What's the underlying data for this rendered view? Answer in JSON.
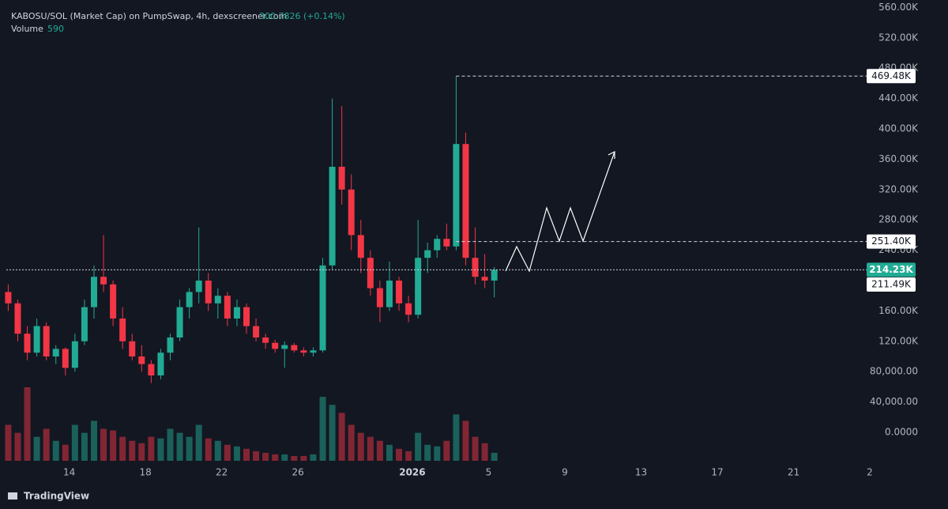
{
  "chart_data": {
    "type": "candlestick",
    "title": "KABOSU/SOL (Market Cap) on PumpSwap, 4h, dexscreener.com",
    "last_price": "300.7826 (+0.14%)",
    "volume_label": "Volume",
    "volume_value": 590,
    "brand": "TradingView",
    "up_color": "#22ab94",
    "down_color": "#f23645",
    "x": [
      10.8,
      11.3,
      11.8,
      12.3,
      12.8,
      13.3,
      13.8,
      14.3,
      14.8,
      15.3,
      15.8,
      16.3,
      16.8,
      17.3,
      17.8,
      18.3,
      18.8,
      19.3,
      19.8,
      20.3,
      20.8,
      21.3,
      21.8,
      22.3,
      22.8,
      23.3,
      23.8,
      24.3,
      24.8,
      25.3,
      25.8,
      26.3,
      26.8,
      27.3,
      27.8,
      28.3,
      28.8,
      29.3,
      29.8,
      30.3,
      30.8,
      31.3,
      31.8,
      32.3,
      32.8,
      33.3,
      33.8,
      34.3,
      34.8,
      35.3,
      35.8,
      36.3
    ],
    "open": [
      185000,
      170000,
      130000,
      105000,
      140000,
      100000,
      110000,
      85000,
      120000,
      165000,
      205000,
      195000,
      150000,
      120000,
      100000,
      90000,
      75000,
      105000,
      125000,
      165000,
      185000,
      200000,
      170000,
      180000,
      150000,
      165000,
      140000,
      125000,
      118000,
      110000,
      115000,
      108000,
      105000,
      108000,
      220000,
      350000,
      320000,
      260000,
      230000,
      190000,
      165000,
      200000,
      170000,
      155000,
      230000,
      240000,
      255000,
      245000,
      380000,
      230000,
      205000,
      200000
    ],
    "high": [
      195000,
      175000,
      140000,
      150000,
      145000,
      115000,
      112000,
      130000,
      175000,
      220000,
      260000,
      200000,
      165000,
      130000,
      115000,
      95000,
      110000,
      130000,
      175000,
      190000,
      270000,
      210000,
      190000,
      185000,
      175000,
      170000,
      150000,
      130000,
      122000,
      120000,
      118000,
      112000,
      112000,
      230000,
      440000,
      430000,
      340000,
      280000,
      240000,
      200000,
      225000,
      205000,
      180000,
      280000,
      250000,
      260000,
      275000,
      469480,
      395000,
      270000,
      235000,
      218000
    ],
    "low": [
      160000,
      120000,
      95000,
      100000,
      95000,
      90000,
      75000,
      80000,
      115000,
      150000,
      185000,
      140000,
      110000,
      95000,
      80000,
      65000,
      70000,
      95000,
      120000,
      150000,
      170000,
      160000,
      150000,
      140000,
      140000,
      130000,
      120000,
      110000,
      105000,
      85000,
      105000,
      100000,
      100000,
      105000,
      215000,
      300000,
      240000,
      210000,
      180000,
      145000,
      160000,
      160000,
      145000,
      150000,
      210000,
      230000,
      240000,
      240000,
      220000,
      195000,
      190000,
      178000
    ],
    "close": [
      170000,
      130000,
      105000,
      140000,
      100000,
      110000,
      85000,
      120000,
      165000,
      205000,
      195000,
      150000,
      120000,
      100000,
      90000,
      75000,
      105000,
      125000,
      165000,
      185000,
      200000,
      170000,
      180000,
      150000,
      165000,
      140000,
      125000,
      118000,
      110000,
      115000,
      108000,
      105000,
      108000,
      220000,
      350000,
      320000,
      260000,
      230000,
      190000,
      165000,
      200000,
      170000,
      155000,
      230000,
      240000,
      255000,
      245000,
      380000,
      230000,
      205000,
      200000,
      214230
    ],
    "volume": [
      45,
      35,
      92,
      30,
      40,
      25,
      20,
      45,
      35,
      50,
      40,
      38,
      30,
      25,
      22,
      30,
      28,
      40,
      35,
      30,
      45,
      28,
      25,
      20,
      18,
      15,
      12,
      10,
      8,
      8,
      6,
      6,
      8,
      80,
      70,
      60,
      45,
      35,
      30,
      25,
      20,
      15,
      12,
      35,
      20,
      18,
      25,
      58,
      50,
      30,
      22,
      10
    ],
    "xlim": [
      10.7,
      56
    ],
    "ylim": [
      -37500,
      569800
    ],
    "xticks": [
      14,
      18,
      22,
      26,
      {
        "value": 32,
        "label": "2026"
      },
      {
        "value": 36,
        "label": "5"
      },
      {
        "value": 40,
        "label": "9"
      },
      {
        "value": 44,
        "label": "13"
      },
      {
        "value": 48,
        "label": "17"
      },
      {
        "value": 52,
        "label": "21"
      },
      {
        "value": 56,
        "label": "2"
      }
    ],
    "yticks": [
      {
        "value": 560000,
        "label": "560.00K"
      },
      {
        "value": 520000,
        "label": "520.00K"
      },
      {
        "value": 480000,
        "label": "480.00K"
      },
      {
        "value": 440000,
        "label": "440.00K"
      },
      {
        "value": 400000,
        "label": "400.00K"
      },
      {
        "value": 360000,
        "label": "360.00K"
      },
      {
        "value": 320000,
        "label": "320.00K"
      },
      {
        "value": 280000,
        "label": "280.00K"
      },
      {
        "value": 240000,
        "label": "240.00K"
      },
      {
        "value": 160000,
        "label": "160.00K"
      },
      {
        "value": 120000,
        "label": "120.00K"
      },
      {
        "value": 80000,
        "label": "80,000.00"
      },
      {
        "value": 40000,
        "label": "40,000.00"
      },
      {
        "value": 0,
        "label": "0.0000"
      }
    ],
    "price_lines": [
      {
        "value": 469480,
        "label": "469.48K",
        "style": "dashed",
        "start": 34.3
      },
      {
        "value": 251400,
        "label": "251.40K",
        "style": "dashed",
        "start": 34.3
      },
      {
        "value": 214230,
        "label": "214.23K",
        "style": "dotted",
        "highlight": true
      },
      {
        "value": 211490,
        "label": "211.49K",
        "style": "none"
      }
    ]
  }
}
